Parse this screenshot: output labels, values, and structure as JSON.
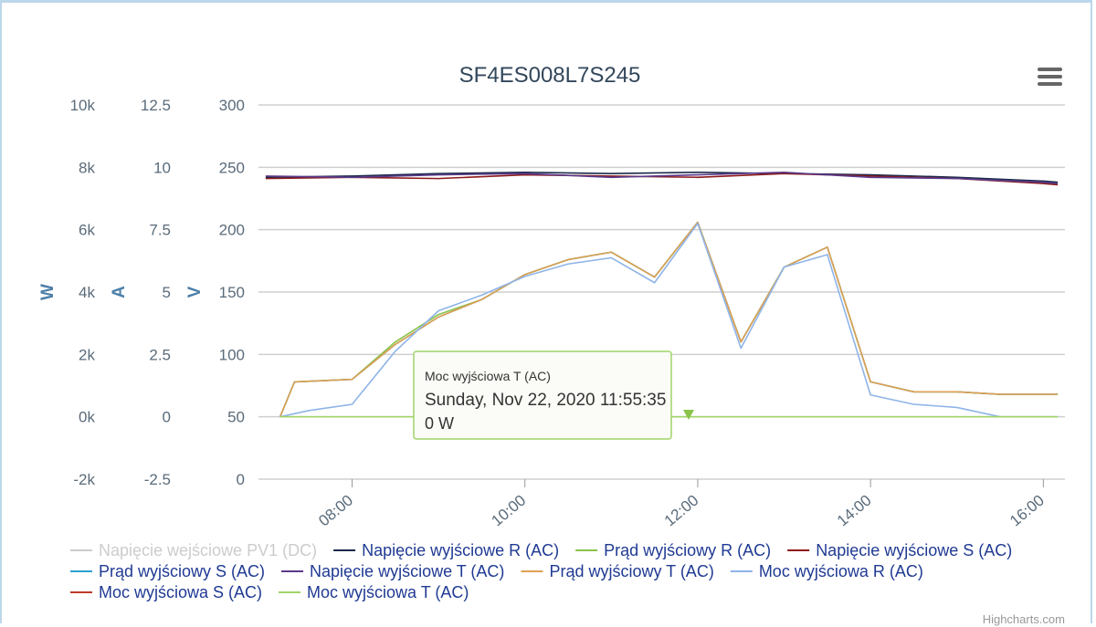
{
  "chart_data": {
    "type": "line",
    "title": "SF4ES008L7S245",
    "x_axis": {
      "min": "06:55",
      "max": "16:15",
      "ticks": [
        "08:00",
        "10:00",
        "12:00",
        "14:00",
        "16:00"
      ]
    },
    "y_axes": [
      {
        "title": "W",
        "min": -2000,
        "max": 10000,
        "ticks": [
          "10k",
          "8k",
          "6k",
          "4k",
          "2k",
          "0k",
          "-2k"
        ]
      },
      {
        "title": "A",
        "min": -2.5,
        "max": 12.5,
        "ticks": [
          "12.5",
          "10",
          "7.5",
          "5",
          "2.5",
          "0",
          "-2.5"
        ]
      },
      {
        "title": "V",
        "min": 0,
        "max": 300,
        "ticks": [
          "300",
          "250",
          "200",
          "150",
          "100",
          "50",
          "0"
        ]
      }
    ],
    "grid": true,
    "legend_position": "bottom",
    "series": [
      {
        "name": "Napięcie wejściowe PV1 (DC)",
        "color": "#cccccc",
        "visible": false,
        "axis": "V"
      },
      {
        "name": "Napięcie wyjściowe R (AC)",
        "color": "#1b2a4a",
        "axis": "V",
        "x": [
          "07:00",
          "08:00",
          "09:00",
          "10:00",
          "11:00",
          "12:00",
          "13:00",
          "14:00",
          "15:00",
          "16:00",
          "16:10"
        ],
        "y": [
          242,
          243,
          245,
          246,
          245,
          246,
          245,
          244,
          242,
          239,
          238
        ]
      },
      {
        "name": "Prąd wyjściowy R (AC)",
        "color": "#8bc34a",
        "axis": "A",
        "x": [
          "07:10",
          "07:20",
          "08:00",
          "08:30",
          "09:00",
          "09:30",
          "10:00",
          "10:30",
          "11:00",
          "11:30",
          "12:00",
          "12:30",
          "13:00",
          "13:30",
          "14:00",
          "14:30",
          "15:00",
          "15:30",
          "16:00",
          "16:10"
        ],
        "y": [
          0,
          1.4,
          1.5,
          3.0,
          4.1,
          4.7,
          5.7,
          6.3,
          6.6,
          5.6,
          7.8,
          3.0,
          6.0,
          6.8,
          1.4,
          1.0,
          1.0,
          0.9,
          0.9,
          0.9
        ]
      },
      {
        "name": "Napięcie wyjściowe S (AC)",
        "color": "#8b1a1a",
        "axis": "V",
        "x": [
          "07:00",
          "08:00",
          "09:00",
          "10:00",
          "11:00",
          "12:00",
          "13:00",
          "14:00",
          "15:00",
          "16:00",
          "16:10"
        ],
        "y": [
          241,
          242,
          241,
          244,
          243,
          242,
          245,
          243,
          241,
          237,
          236
        ]
      },
      {
        "name": "Prąd wyjściowy S (AC)",
        "color": "#2aa1d0",
        "axis": "A",
        "x": [
          "07:10",
          "07:20",
          "08:00",
          "08:30",
          "09:00",
          "09:30",
          "10:00",
          "10:30",
          "11:00",
          "11:30",
          "12:00",
          "12:30",
          "13:00",
          "13:30",
          "14:00",
          "14:30",
          "15:00",
          "15:30",
          "16:00",
          "16:10"
        ],
        "y": [
          0,
          1.4,
          1.5,
          2.9,
          4.0,
          4.7,
          5.7,
          6.3,
          6.6,
          5.6,
          7.8,
          3.0,
          6.0,
          6.8,
          1.4,
          1.0,
          1.0,
          0.9,
          0.9,
          0.9
        ]
      },
      {
        "name": "Napięcie wyjściowe T (AC)",
        "color": "#5b3a8c",
        "axis": "V",
        "x": [
          "07:00",
          "08:00",
          "09:00",
          "10:00",
          "11:00",
          "12:00",
          "13:00",
          "14:00",
          "15:00",
          "16:00",
          "16:10"
        ],
        "y": [
          243,
          242,
          244,
          245,
          242,
          244,
          246,
          242,
          241,
          238,
          237
        ]
      },
      {
        "name": "Prąd wyjściowy T (AC)",
        "color": "#e0a050",
        "axis": "A",
        "x": [
          "07:10",
          "07:20",
          "08:00",
          "08:30",
          "09:00",
          "09:30",
          "10:00",
          "10:30",
          "11:00",
          "11:30",
          "12:00",
          "12:30",
          "13:00",
          "13:30",
          "14:00",
          "14:30",
          "15:00",
          "15:30",
          "16:00",
          "16:10"
        ],
        "y": [
          0,
          1.4,
          1.5,
          2.9,
          4.0,
          4.7,
          5.7,
          6.3,
          6.6,
          5.6,
          7.8,
          3.0,
          6.0,
          6.8,
          1.4,
          1.0,
          1.0,
          0.9,
          0.9,
          0.9
        ]
      },
      {
        "name": "Moc wyjściowa R (AC)",
        "color": "#8fb4e8",
        "axis": "W",
        "x": [
          "07:10",
          "07:30",
          "08:00",
          "08:30",
          "09:00",
          "09:30",
          "10:00",
          "10:30",
          "11:00",
          "11:30",
          "12:00",
          "12:30",
          "13:00",
          "13:30",
          "14:00",
          "14:30",
          "15:00",
          "15:30",
          "16:00",
          "16:10"
        ],
        "y": [
          0,
          200,
          400,
          2100,
          3400,
          3900,
          4500,
          4900,
          5100,
          4300,
          6200,
          2200,
          4800,
          5200,
          700,
          400,
          300,
          0,
          0,
          0
        ]
      },
      {
        "name": "Moc wyjściowa S (AC)",
        "color": "#c0392b",
        "axis": "W"
      },
      {
        "name": "Moc wyjściowa T (AC)",
        "color": "#a0d468",
        "axis": "W",
        "x": [
          "07:10",
          "16:10"
        ],
        "y": [
          0,
          0
        ]
      }
    ]
  },
  "legend": {
    "items": [
      {
        "label": "Napięcie wejściowe PV1 (DC)",
        "color": "#cccccc",
        "hidden": true
      },
      {
        "label": "Napięcie wyjściowe R (AC)",
        "color": "#1b2a4a"
      },
      {
        "label": "Prąd wyjściowy R (AC)",
        "color": "#8bc34a"
      },
      {
        "label": "Napięcie wyjściowe S (AC)",
        "color": "#8b1a1a"
      },
      {
        "label": "Prąd wyjściowy S (AC)",
        "color": "#2aa1d0"
      },
      {
        "label": "Napięcie wyjściowe T (AC)",
        "color": "#5b3a8c"
      },
      {
        "label": "Prąd wyjściowy T (AC)",
        "color": "#e0a050"
      },
      {
        "label": "Moc wyjściowa R (AC)",
        "color": "#8fb4e8"
      },
      {
        "label": "Moc wyjściowa S (AC)",
        "color": "#c0392b"
      },
      {
        "label": "Moc wyjściowa T (AC)",
        "color": "#a0d468"
      }
    ]
  },
  "tooltip": {
    "series": "Moc wyjściowa T (AC)",
    "date": "Sunday, Nov 22, 2020 11:55:35",
    "value": "0 W",
    "border_color": "#a0d468"
  },
  "menu": {
    "icon": "hamburger-menu-icon"
  },
  "credits": "Highcharts.com"
}
